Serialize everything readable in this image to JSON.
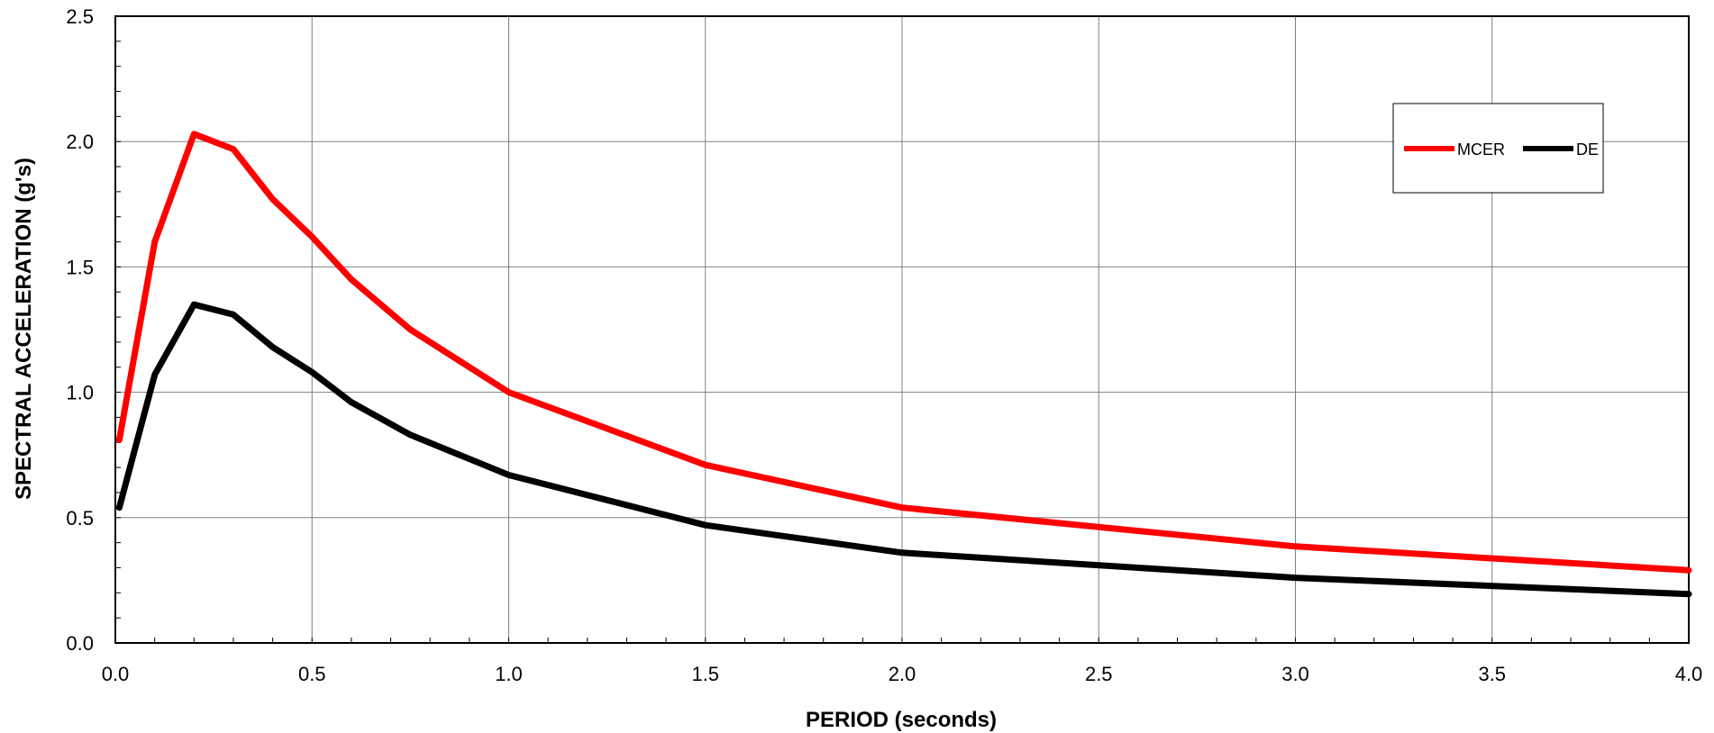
{
  "chart_data": {
    "type": "line",
    "xlabel": "PERIOD (seconds)",
    "ylabel": "SPECTRAL ACCELERATION (g's)",
    "xlim": [
      0,
      4
    ],
    "ylim": [
      0,
      2.5
    ],
    "x_ticks": [
      "0.0",
      "0.5",
      "1.0",
      "1.5",
      "2.0",
      "2.5",
      "3.0",
      "3.5",
      "4.0"
    ],
    "y_ticks": [
      "0.0",
      "0.5",
      "1.0",
      "1.5",
      "2.0",
      "2.5"
    ],
    "grid": true,
    "legend_position": "top-right",
    "series": [
      {
        "name": "MCER",
        "color": "#ff0000",
        "x": [
          0.01,
          0.1,
          0.2,
          0.3,
          0.4,
          0.5,
          0.6,
          0.75,
          1.0,
          1.5,
          2.0,
          3.0,
          4.0
        ],
        "y": [
          0.81,
          1.6,
          2.03,
          1.97,
          1.77,
          1.62,
          1.45,
          1.25,
          1.0,
          0.71,
          0.54,
          0.385,
          0.29
        ]
      },
      {
        "name": "DE",
        "color": "#000000",
        "x": [
          0.01,
          0.1,
          0.2,
          0.3,
          0.4,
          0.5,
          0.6,
          0.75,
          1.0,
          1.5,
          2.0,
          3.0,
          4.0
        ],
        "y": [
          0.54,
          1.07,
          1.35,
          1.31,
          1.18,
          1.08,
          0.96,
          0.83,
          0.67,
          0.47,
          0.36,
          0.26,
          0.195
        ]
      }
    ]
  }
}
